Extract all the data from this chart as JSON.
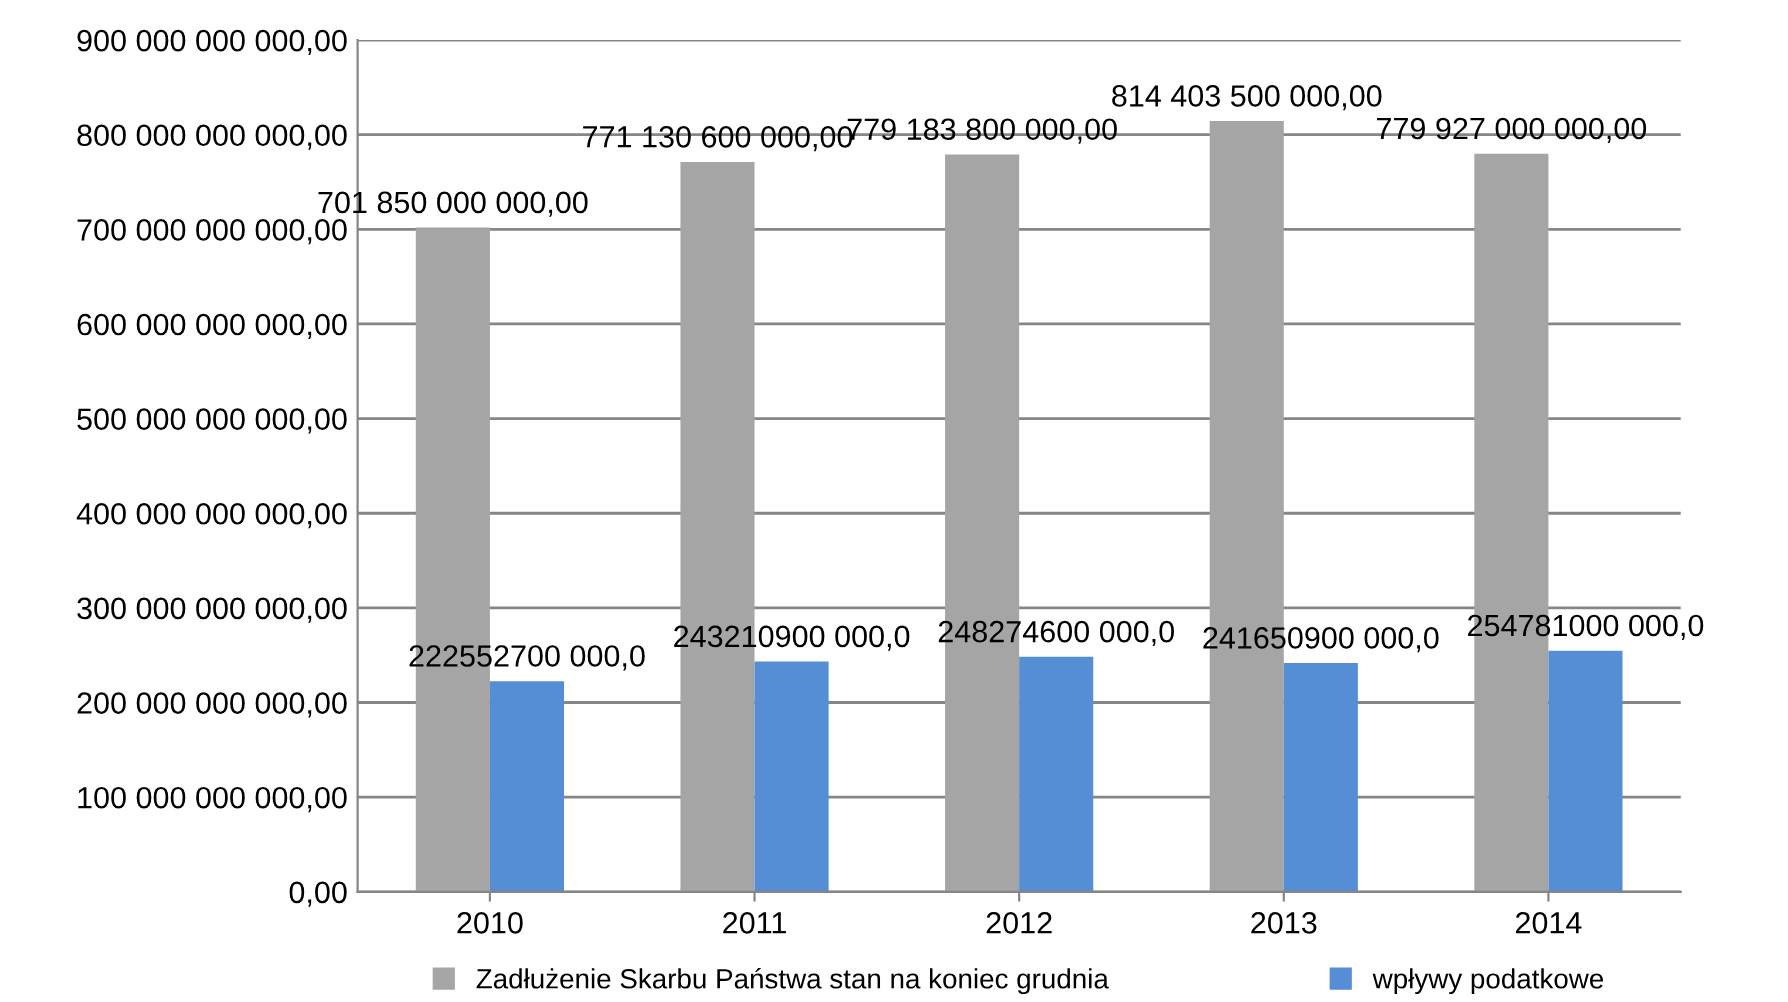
{
  "chart_data": {
    "type": "bar",
    "categories": [
      "2010",
      "2011",
      "2012",
      "2013",
      "2014"
    ],
    "series": [
      {
        "name": "Zadłużenie Skarbu Państwa stan na koniec grudnia",
        "color": "#a5a5a5",
        "values": [
          701850000000,
          771130600000,
          779183800000,
          814403500000,
          779927000000
        ],
        "value_labels": [
          "701 850 000 000,00",
          "771 130 600 000,00",
          "779 183 800 000,00",
          "814 403 500 000,00",
          "779 927 000 000,00"
        ]
      },
      {
        "name": "wpływy podatkowe",
        "color": "#558ed5",
        "values": [
          222552700000,
          243210900000,
          248274600000,
          241650900000,
          254781000000
        ],
        "value_labels": [
          "222552700 000,0",
          "243210900 000,0",
          "248274600 000,0",
          "241650900 000,0",
          "254781000 000,0"
        ]
      }
    ],
    "ylim": [
      0,
      900000000000
    ],
    "yticks": [
      {
        "value": 0,
        "label": "0,00"
      },
      {
        "value": 100000000000,
        "label": "100 000 000 000,00"
      },
      {
        "value": 200000000000,
        "label": "200 000 000 000,00"
      },
      {
        "value": 300000000000,
        "label": "300 000 000 000,00"
      },
      {
        "value": 400000000000,
        "label": "400 000 000 000,00"
      },
      {
        "value": 500000000000,
        "label": "500 000 000 000,00"
      },
      {
        "value": 600000000000,
        "label": "600 000 000 000,00"
      },
      {
        "value": 700000000000,
        "label": "700 000 000 000,00"
      },
      {
        "value": 800000000000,
        "label": "800 000 000 000,00"
      },
      {
        "value": 900000000000,
        "label": "900 000 000 000,00"
      }
    ],
    "grid": "y",
    "legend": "bottom"
  }
}
